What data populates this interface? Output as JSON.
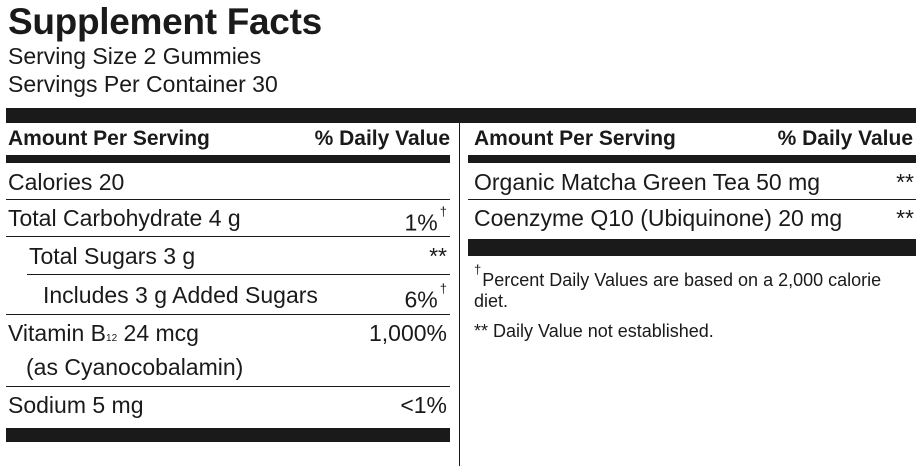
{
  "title": "Supplement Facts",
  "serving_size": "Serving Size 2 Gummies",
  "servings_per_container": "Servings Per Container 30",
  "left_table": {
    "header_amount": "Amount Per Serving",
    "header_dv": "% Daily Value",
    "calories": "Calories 20",
    "carb_label": "Total Carbohydrate 4 g",
    "carb_dv": "1%",
    "sugars_label": "Total Sugars 3 g",
    "sugars_dv": "**",
    "added_label": "Includes 3 g Added Sugars",
    "added_dv": "6%",
    "b12_prefix": "Vitamin B",
    "b12_sub": "12",
    "b12_amount": "24 mcg",
    "b12_form": "(as Cyanocobalamin)",
    "b12_dv": "1,000%",
    "sodium_label": "Sodium 5 mg",
    "sodium_dv": "<1%",
    "dagger": "†"
  },
  "right_table": {
    "header_amount": "Amount Per Serving",
    "header_dv": "% Daily Value",
    "matcha_label": "Organic Matcha Green Tea 50 mg",
    "matcha_dv": "**",
    "coq10_label": "Coenzyme Q10 (Ubiquinone) 20 mg",
    "coq10_dv": "**"
  },
  "footnotes": {
    "dagger": "†",
    "percent_dv_note": "Percent Daily Values are based on a 2,000 calorie diet.",
    "not_established_note": "** Daily Value not established."
  }
}
